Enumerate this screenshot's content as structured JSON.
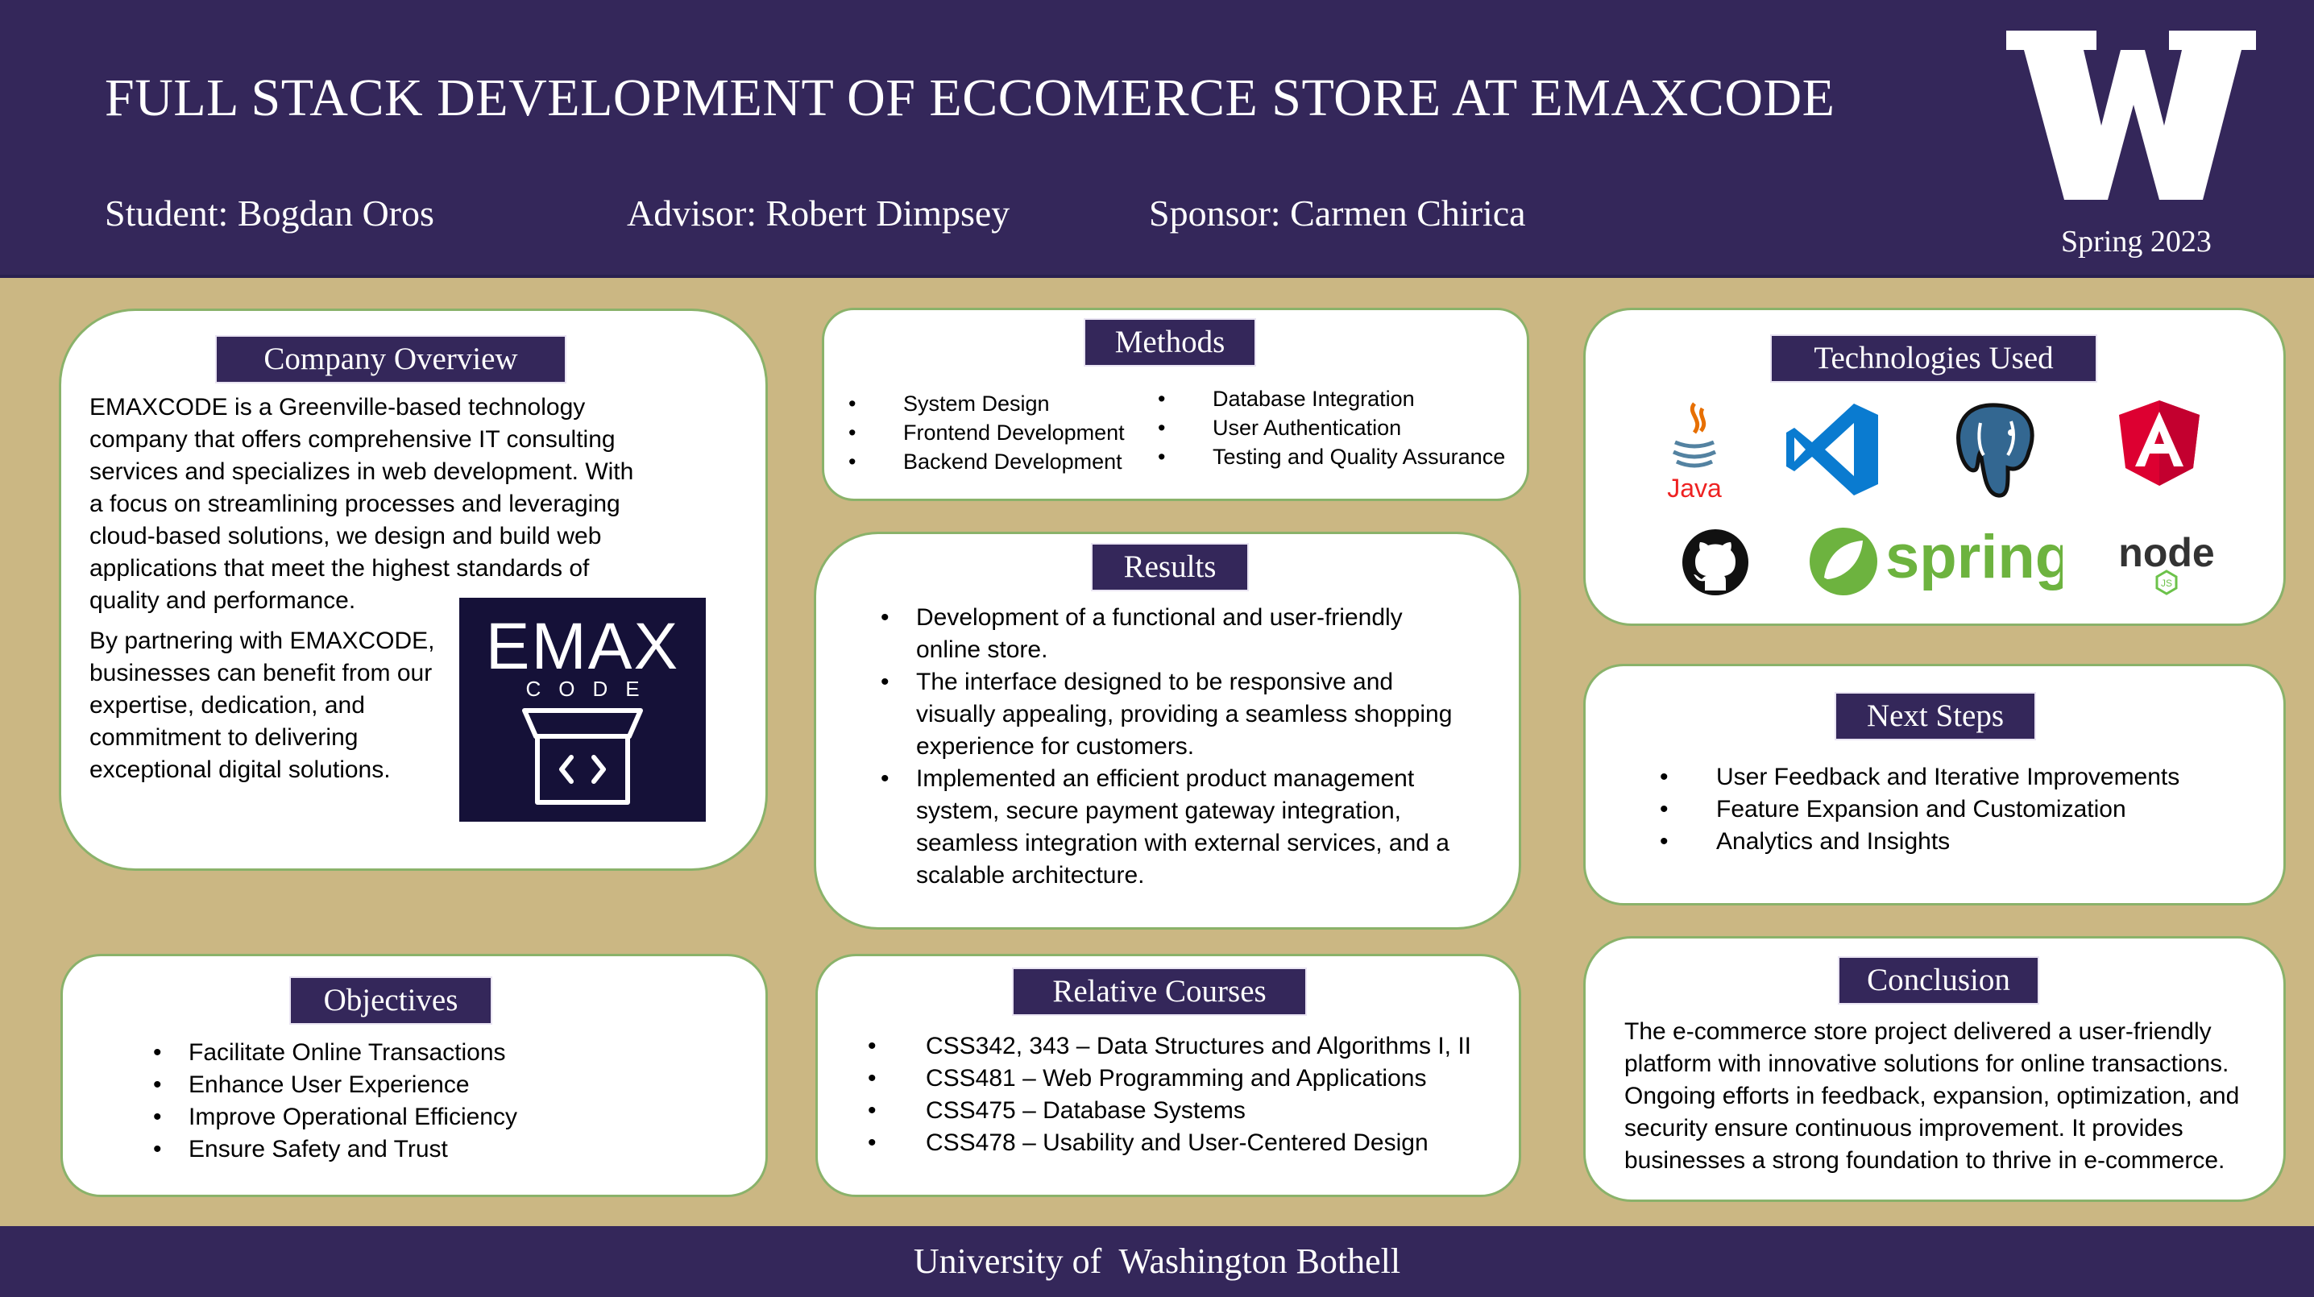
{
  "header": {
    "title": "FULL STACK DEVELOPMENT OF ECCOMERCE STORE AT EMAXCODE",
    "student": "Student: Bogdan Oros",
    "advisor": "Advisor: Robert Dimpsey",
    "sponsor": "Sponsor: Carmen Chirica",
    "term": "Spring 2023",
    "logo_icon": "uw-w-logo"
  },
  "company": {
    "heading": "Company Overview",
    "para1_lines": [
      "EMAXCODE is a Greenville-based technology",
      "company that offers comprehensive IT consulting",
      "services and specializes in web development. With",
      "a focus on streamlining processes and leveraging",
      "cloud-based solutions, we design and build web",
      "applications that meet the highest standards of",
      "quality and performance."
    ],
    "para2_lines": [
      "By partnering with EMAXCODE,",
      "businesses can benefit from our",
      "expertise, dedication, and",
      "commitment to delivering",
      "exceptional digital solutions."
    ],
    "logo_text": "EMAX",
    "logo_subtext": "CODE"
  },
  "methods": {
    "heading": "Methods",
    "left": [
      "System Design",
      "Frontend Development",
      "Backend Development"
    ],
    "right": [
      "Database Integration",
      "User Authentication",
      "Testing and Quality Assurance"
    ]
  },
  "technologies": {
    "heading": "Technologies Used",
    "java_label": "Java",
    "spring_label": "spring",
    "node_label": "node",
    "node_sub": "JS",
    "icons": [
      "java-icon",
      "vscode-icon",
      "postgresql-icon",
      "angular-icon",
      "github-icon",
      "spring-icon",
      "nodejs-icon"
    ]
  },
  "results": {
    "heading": "Results",
    "items": [
      [
        "Development of a functional and user-friendly",
        "online store."
      ],
      [
        "The interface designed to be responsive and",
        "visually appealing, providing a seamless shopping",
        "experience for customers."
      ],
      [
        "Implemented an efficient product management",
        "system, secure payment gateway integration,",
        "seamless integration with external services, and a",
        "scalable architecture."
      ]
    ]
  },
  "next_steps": {
    "heading": "Next Steps",
    "items": [
      "User Feedback and Iterative Improvements",
      "Feature Expansion and Customization",
      "Analytics and Insights"
    ]
  },
  "objectives": {
    "heading": "Objectives",
    "items": [
      "Facilitate Online Transactions",
      "Enhance User Experience",
      "Improve Operational Efficiency",
      "Ensure Safety and Trust"
    ]
  },
  "courses": {
    "heading": "Relative Courses",
    "items": [
      "CSS342, 343 – Data Structures and Algorithms I, II",
      "CSS481 – Web Programming and Applications",
      "CSS475 – Database Systems",
      "CSS478 – Usability and User-Centered Design"
    ]
  },
  "conclusion": {
    "heading": "Conclusion",
    "lines": [
      "The e-commerce store project delivered a user-friendly",
      "platform with innovative solutions for online transactions.",
      "Ongoing efforts in feedback, expansion, optimization, and",
      "security ensure continuous improvement. It provides",
      "businesses a strong foundation to thrive in e-commerce."
    ]
  },
  "footer": {
    "text": "University of  Washington Bothell"
  },
  "colors": {
    "purple": "#34275a",
    "tan": "#cbb783",
    "green_border": "#8ab26a",
    "spring_green": "#6db33f",
    "angular_red": "#dd0031",
    "vscode_blue": "#0078d4"
  }
}
